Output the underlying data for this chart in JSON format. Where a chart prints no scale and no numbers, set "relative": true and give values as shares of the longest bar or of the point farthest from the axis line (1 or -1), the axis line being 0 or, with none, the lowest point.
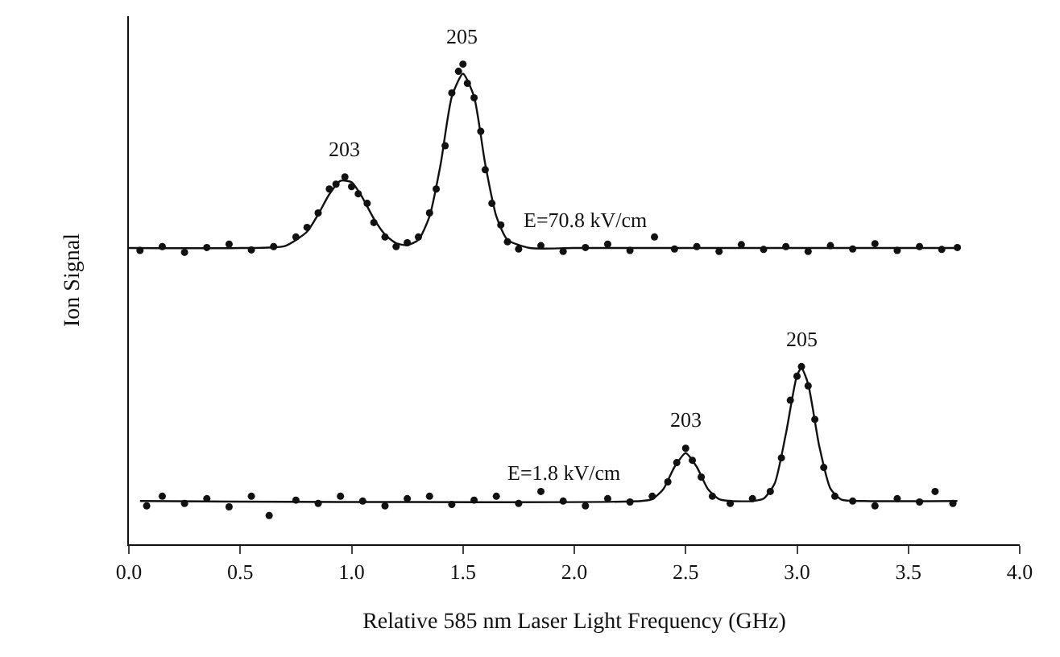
{
  "chart_data": {
    "type": "scatter",
    "relative": true,
    "xlabel": "Relative 585 nm Laser Light Frequency (GHz)",
    "ylabel": "Ion Signal",
    "xlim": [
      0,
      4
    ],
    "xticks": [
      {
        "value": 0,
        "label": "0.0"
      },
      {
        "value": 0.5,
        "label": "0.5"
      },
      {
        "value": 1,
        "label": "1.0"
      },
      {
        "value": 1.5,
        "label": "1.5"
      },
      {
        "value": 2,
        "label": "2.0"
      },
      {
        "value": 2.5,
        "label": "2.5"
      },
      {
        "value": 3,
        "label": "3.0"
      },
      {
        "value": 3.5,
        "label": "3.5"
      },
      {
        "value": 4,
        "label": "4.0"
      }
    ],
    "grid": false,
    "series": [
      {
        "marker": "circle",
        "color": "#111111",
        "x": [
          0.05,
          0.15,
          0.25,
          0.35,
          0.45,
          0.55,
          0.65,
          0.75,
          0.8,
          0.85,
          0.9,
          0.93,
          0.97,
          1.0,
          1.03,
          1.07,
          1.1,
          1.15,
          1.2,
          1.25,
          1.3,
          1.35,
          1.38,
          1.42,
          1.45,
          1.48,
          1.5,
          1.52,
          1.55,
          1.58,
          1.6,
          1.63,
          1.67,
          1.7,
          1.75,
          1.85,
          1.95,
          2.05,
          2.15,
          2.25,
          2.36,
          2.45,
          2.55,
          2.65,
          2.75,
          2.85,
          2.95,
          3.05,
          3.15,
          3.25,
          3.35,
          3.45,
          3.55,
          3.65,
          3.72
        ],
        "values": [
          0.612,
          0.62,
          0.608,
          0.618,
          0.625,
          0.613,
          0.62,
          0.64,
          0.66,
          0.69,
          0.74,
          0.75,
          0.765,
          0.745,
          0.73,
          0.71,
          0.67,
          0.64,
          0.62,
          0.628,
          0.64,
          0.69,
          0.74,
          0.83,
          0.94,
          0.985,
          1.0,
          0.96,
          0.93,
          0.86,
          0.78,
          0.71,
          0.665,
          0.63,
          0.615,
          0.622,
          0.61,
          0.618,
          0.625,
          0.612,
          0.64,
          0.615,
          0.62,
          0.61,
          0.624,
          0.614,
          0.62,
          0.61,
          0.622,
          0.615,
          0.626,
          0.612,
          0.62,
          0.614,
          0.618
        ]
      },
      {
        "type": "line",
        "marker": "none",
        "color": "#111111",
        "x": [
          0,
          0.5,
          0.7,
          0.8,
          0.85,
          0.9,
          0.95,
          1.0,
          1.05,
          1.1,
          1.15,
          1.2,
          1.25,
          1.3,
          1.35,
          1.4,
          1.45,
          1.5,
          1.55,
          1.6,
          1.65,
          1.7,
          1.8,
          2.0,
          3.72
        ],
        "values": [
          0.617,
          0.617,
          0.621,
          0.651,
          0.687,
          0.729,
          0.757,
          0.754,
          0.721,
          0.678,
          0.645,
          0.627,
          0.623,
          0.634,
          0.683,
          0.792,
          0.932,
          0.98,
          0.932,
          0.792,
          0.683,
          0.634,
          0.617,
          0.617,
          0.617
        ]
      },
      {
        "marker": "circle",
        "color": "#111111",
        "x": [
          0.08,
          0.15,
          0.25,
          0.35,
          0.45,
          0.55,
          0.63,
          0.75,
          0.85,
          0.95,
          1.05,
          1.15,
          1.25,
          1.35,
          1.45,
          1.55,
          1.65,
          1.75,
          1.85,
          1.95,
          2.05,
          2.15,
          2.25,
          2.35,
          2.42,
          2.46,
          2.5,
          2.53,
          2.57,
          2.62,
          2.7,
          2.8,
          2.88,
          2.93,
          2.97,
          3.0,
          3.02,
          3.05,
          3.08,
          3.12,
          3.17,
          3.25,
          3.35,
          3.45,
          3.55,
          3.62,
          3.7
        ],
        "values": [
          0.08,
          0.1,
          0.085,
          0.095,
          0.078,
          0.1,
          0.06,
          0.092,
          0.085,
          0.1,
          0.09,
          0.08,
          0.095,
          0.1,
          0.083,
          0.092,
          0.1,
          0.085,
          0.11,
          0.09,
          0.08,
          0.095,
          0.088,
          0.1,
          0.13,
          0.17,
          0.2,
          0.175,
          0.14,
          0.1,
          0.085,
          0.095,
          0.11,
          0.18,
          0.3,
          0.35,
          0.37,
          0.33,
          0.26,
          0.16,
          0.1,
          0.09,
          0.08,
          0.095,
          0.088,
          0.11,
          0.085
        ]
      },
      {
        "type": "line",
        "marker": "none",
        "color": "#111111",
        "x": [
          0.05,
          2.3,
          2.35,
          2.4,
          2.45,
          2.5,
          2.55,
          2.6,
          2.65,
          2.7,
          2.8,
          2.85,
          2.9,
          2.95,
          3.0,
          3.02,
          3.05,
          3.1,
          3.15,
          3.2,
          3.3,
          3.72
        ],
        "values": [
          0.09,
          0.09,
          0.094,
          0.115,
          0.161,
          0.19,
          0.161,
          0.115,
          0.094,
          0.09,
          0.09,
          0.095,
          0.127,
          0.23,
          0.352,
          0.367,
          0.334,
          0.204,
          0.116,
          0.093,
          0.09,
          0.09
        ]
      }
    ],
    "annotations": [
      {
        "text": "203",
        "x": 0.97,
        "y": 0.765
      },
      {
        "text": "205",
        "x": 1.5,
        "y": 1.0
      },
      {
        "text": "E=70.8 kV/cm",
        "x": 2.05,
        "y": 0.618
      },
      {
        "text": "203",
        "x": 2.5,
        "y": 0.2
      },
      {
        "text": "205",
        "x": 3.02,
        "y": 0.37
      },
      {
        "text": "E=1.8 kV/cm",
        "x": 1.95,
        "y": 0.09
      }
    ]
  }
}
